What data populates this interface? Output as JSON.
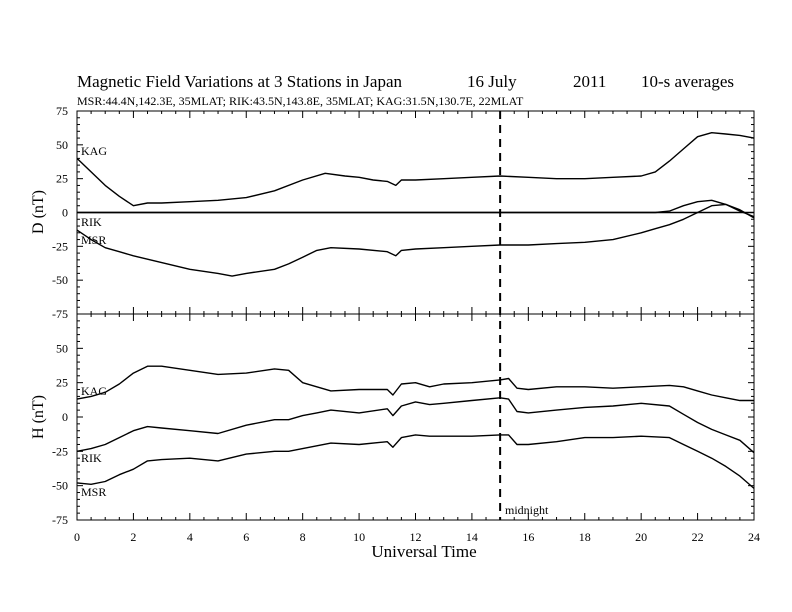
{
  "chart_data": [
    {
      "type": "line",
      "title": "Magnetic Field Variations at 3 Stations in Japan",
      "date": "16 July",
      "year": "2011",
      "averaging": "10-s averages",
      "subtitle": "MSR:44.4N,142.3E, 35MLAT;  RIK:43.5N,143.8E, 35MLAT;  KAG:31.5N,130.7E, 22MLAT",
      "ylabel": "D (nT)",
      "xlabel": "",
      "xlim": [
        0,
        24
      ],
      "ylim": [
        -75,
        75
      ],
      "x_ticks": [
        0,
        2,
        4,
        6,
        8,
        10,
        12,
        14,
        16,
        18,
        20,
        22,
        24
      ],
      "y_ticks": [
        "75",
        "50",
        "25",
        "0",
        "-25",
        "-50",
        "-75"
      ],
      "series": [
        {
          "name": "KAG",
          "x": [
            0,
            0.5,
            1,
            1.5,
            2,
            2.5,
            3,
            4,
            5,
            6,
            7,
            8,
            8.8,
            9.5,
            10,
            10.5,
            11,
            11.3,
            11.5,
            12,
            13,
            14,
            15,
            16,
            17,
            18,
            19,
            20,
            20.5,
            21,
            21.5,
            22,
            22.5,
            23,
            23.5,
            24
          ],
          "y": [
            40,
            30,
            20,
            12,
            5,
            7,
            7,
            8,
            9,
            11,
            16,
            24,
            29,
            27,
            26,
            24,
            23,
            20,
            24,
            24,
            25,
            26,
            27,
            26,
            25,
            25,
            26,
            27,
            30,
            38,
            47,
            56,
            59,
            58,
            57,
            55
          ]
        },
        {
          "name": "RIK",
          "x": [
            0,
            20,
            20.5,
            21,
            21.5,
            22,
            22.5,
            23,
            23.5,
            24
          ],
          "y": [
            0,
            0,
            0,
            1,
            5,
            8,
            9,
            6,
            1,
            -3
          ]
        },
        {
          "name": "MSR",
          "x": [
            0,
            0.5,
            1,
            1.5,
            2,
            3,
            4,
            5,
            5.5,
            6,
            7,
            7.5,
            8,
            8.5,
            9,
            10,
            11,
            11.3,
            11.5,
            12,
            13,
            14,
            15,
            16,
            17,
            18,
            19,
            20,
            20.5,
            21,
            21.5,
            22,
            22.5,
            23,
            23.5,
            24
          ],
          "y": [
            -13,
            -20,
            -26,
            -29,
            -32,
            -37,
            -42,
            -45,
            -47,
            -45,
            -42,
            -38,
            -33,
            -28,
            -26,
            -27,
            -29,
            -32,
            -28,
            -27,
            -26,
            -25,
            -24,
            -24,
            -23,
            -22,
            -20,
            -15,
            -12,
            -9,
            -5,
            0,
            5,
            6,
            2,
            -4
          ]
        }
      ],
      "annotations": [
        "KAG",
        "RIK",
        "MSR"
      ]
    },
    {
      "type": "line",
      "ylabel": "H (nT)",
      "xlabel": "Universal Time",
      "xlim": [
        0,
        24
      ],
      "ylim": [
        -75,
        75
      ],
      "x_ticks": [
        0,
        2,
        4,
        6,
        8,
        10,
        12,
        14,
        16,
        18,
        20,
        22,
        24
      ],
      "y_ticks": [
        "50",
        "25",
        "0",
        "-25",
        "-50",
        "-75"
      ],
      "series": [
        {
          "name": "KAG",
          "x": [
            0,
            0.5,
            1,
            1.5,
            2,
            2.5,
            3,
            4,
            5,
            6,
            7,
            7.5,
            8,
            8.5,
            9,
            10,
            11,
            11.2,
            11.5,
            12,
            12.5,
            13,
            14,
            15,
            15.3,
            15.6,
            16,
            17,
            18,
            19,
            20,
            21,
            21.5,
            22,
            22.5,
            23,
            23.5,
            24
          ],
          "y": [
            13,
            15,
            18,
            24,
            32,
            37,
            37,
            34,
            31,
            32,
            35,
            34,
            25,
            22,
            19,
            20,
            20,
            16,
            24,
            25,
            22,
            24,
            25,
            27,
            28,
            21,
            20,
            22,
            22,
            21,
            22,
            23,
            22,
            19,
            16,
            14,
            12,
            12
          ]
        },
        {
          "name": "RIK",
          "x": [
            0,
            0.5,
            1,
            1.5,
            2,
            2.5,
            3,
            4,
            5,
            6,
            7,
            7.5,
            8,
            8.5,
            9,
            10,
            11,
            11.2,
            11.5,
            12,
            12.5,
            13,
            14,
            15,
            15.3,
            15.6,
            16,
            17,
            18,
            19,
            20,
            21,
            21.5,
            22,
            22.5,
            23,
            23.5,
            24
          ],
          "y": [
            -25,
            -23,
            -20,
            -15,
            -10,
            -7,
            -8,
            -10,
            -12,
            -6,
            -2,
            -2,
            1,
            3,
            5,
            3,
            6,
            1,
            8,
            11,
            9,
            10,
            12,
            14,
            13,
            4,
            3,
            5,
            7,
            8,
            10,
            8,
            2,
            -4,
            -9,
            -13,
            -17,
            -26
          ]
        },
        {
          "name": "MSR",
          "x": [
            0,
            0.5,
            1,
            1.5,
            2,
            2.5,
            3,
            4,
            5,
            6,
            7,
            7.5,
            8,
            8.5,
            9,
            10,
            11,
            11.2,
            11.5,
            12,
            12.5,
            13,
            14,
            15,
            15.3,
            15.6,
            16,
            17,
            18,
            19,
            20,
            21,
            21.5,
            22,
            22.5,
            23,
            23.5,
            24
          ],
          "y": [
            -48,
            -49,
            -47,
            -42,
            -38,
            -32,
            -31,
            -30,
            -32,
            -27,
            -25,
            -25,
            -23,
            -21,
            -19,
            -20,
            -18,
            -22,
            -15,
            -13,
            -14,
            -14,
            -14,
            -13,
            -13,
            -20,
            -20,
            -18,
            -15,
            -15,
            -14,
            -15,
            -20,
            -25,
            -30,
            -36,
            -43,
            -52
          ]
        }
      ],
      "annotations": [
        "KAG",
        "RIK",
        "MSR",
        "midnight"
      ],
      "midnight_marker": {
        "x": 15,
        "label": "midnight"
      }
    }
  ]
}
